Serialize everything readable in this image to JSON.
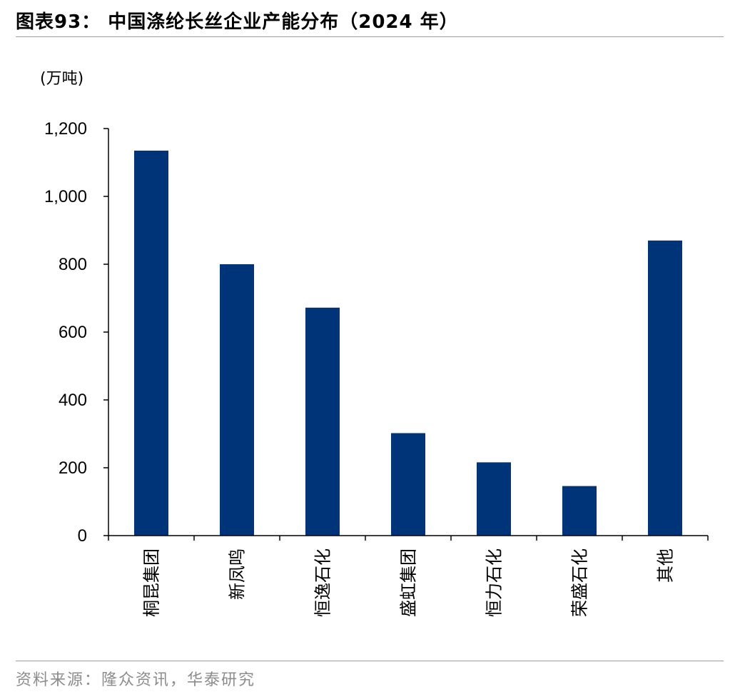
{
  "header": {
    "title": "图表93：  中国涤纶长丝企业产能分布（2024 年）"
  },
  "footer": {
    "source": "资料来源：隆众资讯，华泰研究"
  },
  "chart_data": {
    "type": "bar",
    "title": "图表93：  中国涤纶长丝企业产能分布（2024 年）",
    "unit_label": "(万吨)",
    "xlabel": "",
    "ylabel": "",
    "categories": [
      "桐昆集团",
      "新凤鸣",
      "恒逸石化",
      "盛虹集团",
      "恒力石化",
      "荣盛石化",
      "其他"
    ],
    "values": [
      1135,
      800,
      672,
      302,
      216,
      146,
      870
    ],
    "ylim": [
      0,
      1200
    ],
    "yticks": [
      0,
      200,
      400,
      600,
      800,
      1000,
      1200
    ],
    "ytick_labels": [
      "0",
      "200",
      "400",
      "600",
      "800",
      "1,000",
      "1,200"
    ],
    "grid": false,
    "legend": "none",
    "bar_color": "#003478"
  }
}
